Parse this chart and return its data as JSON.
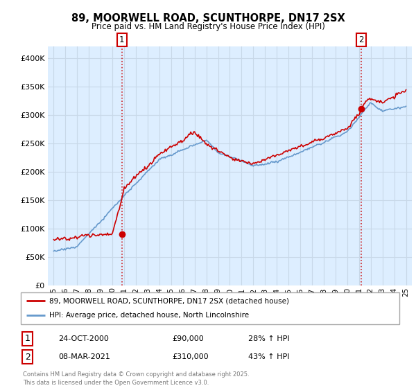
{
  "title": "89, MOORWELL ROAD, SCUNTHORPE, DN17 2SX",
  "subtitle": "Price paid vs. HM Land Registry's House Price Index (HPI)",
  "legend_line1": "89, MOORWELL ROAD, SCUNTHORPE, DN17 2SX (detached house)",
  "legend_line2": "HPI: Average price, detached house, North Lincolnshire",
  "sale1_date": 2000.81,
  "sale1_price": 90000,
  "sale1_label": "24-OCT-2000",
  "sale1_pct": "28% ↑ HPI",
  "sale2_date": 2021.18,
  "sale2_price": 310000,
  "sale2_label": "08-MAR-2021",
  "sale2_pct": "43% ↑ HPI",
  "footer": "Contains HM Land Registry data © Crown copyright and database right 2025.\nThis data is licensed under the Open Government Licence v3.0.",
  "red_color": "#cc0000",
  "blue_color": "#6699cc",
  "plot_bg": "#ddeeff",
  "grid_color": "#c8d8e8",
  "ylim": [
    0,
    420000
  ],
  "xlim_start": 1994.5,
  "xlim_end": 2025.5
}
